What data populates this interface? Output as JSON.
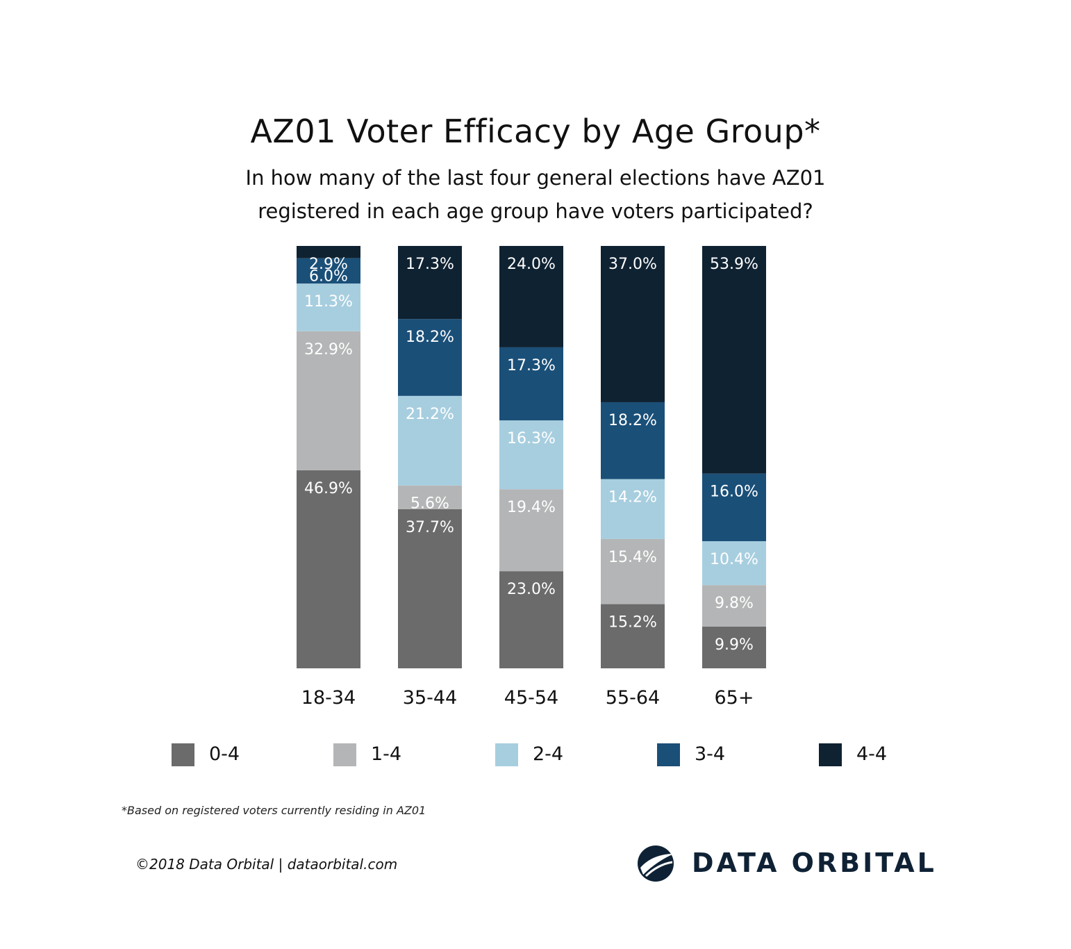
{
  "title": "AZ01 Voter Efficacy by Age Group*",
  "subtitle_line1": "In how many of the last four general elections have AZ01",
  "subtitle_line2": "registered in each age group have voters participated?",
  "colors": {
    "0-4": "#6a6b6a",
    "1-4": "#b4b5b6",
    "2-4": "#a7cedf",
    "3-4": "#1a4f78",
    "4-4": "#0f2232"
  },
  "chart_data": {
    "type": "bar",
    "stacked": true,
    "categories": [
      "18-34",
      "35-44",
      "45-54",
      "55-64",
      "65+"
    ],
    "series": [
      {
        "name": "0-4",
        "values": [
          46.9,
          37.7,
          23.0,
          15.2,
          9.9
        ],
        "labels": [
          "46.9%",
          "37.7%",
          "23.0%",
          "15.2%",
          "9.9%"
        ]
      },
      {
        "name": "1-4",
        "values": [
          32.9,
          5.6,
          19.4,
          15.4,
          9.8
        ],
        "labels": [
          "32.9%",
          "5.6%",
          "19.4%",
          "15.4%",
          "9.8%"
        ]
      },
      {
        "name": "2-4",
        "values": [
          11.3,
          21.2,
          16.3,
          14.2,
          10.4
        ],
        "labels": [
          "11.3%",
          "21.2%",
          "16.3%",
          "14.2%",
          "10.4%"
        ]
      },
      {
        "name": "3-4",
        "values": [
          6.0,
          18.2,
          17.3,
          18.2,
          16.0
        ],
        "labels": [
          "6.0%",
          "18.2%",
          "17.3%",
          "18.2%",
          "16.0%"
        ]
      },
      {
        "name": "4-4",
        "values": [
          2.9,
          17.3,
          24.0,
          37.0,
          53.9
        ],
        "labels": [
          "2.9%",
          "17.3%",
          "24.0%",
          "37.0%",
          "53.9%"
        ]
      }
    ],
    "ylim": [
      0,
      100
    ],
    "legend_position": "bottom",
    "grid": false
  },
  "legend": [
    {
      "label": "0-4",
      "key": "0-4"
    },
    {
      "label": "1-4",
      "key": "1-4"
    },
    {
      "label": "2-4",
      "key": "2-4"
    },
    {
      "label": "3-4",
      "key": "3-4"
    },
    {
      "label": "4-4",
      "key": "4-4"
    }
  ],
  "footnote": "*Based on registered voters currently residing in AZ01",
  "copyright": "©2018 Data Orbital | dataorbital.com",
  "logo_text": "DATA ORBITAL"
}
